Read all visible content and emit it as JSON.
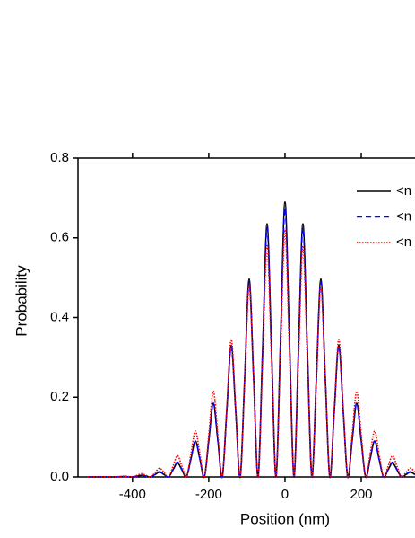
{
  "chart_data": {
    "type": "line",
    "x_label": "Position (nm)",
    "y_label": "Probability",
    "x": [
      -517,
      -505.25,
      -493.5,
      -481.75,
      -470,
      -458.25,
      -446.5,
      -434.75,
      -423,
      -411.25,
      -399.5,
      -387.75,
      -376,
      -364.25,
      -352.5,
      -340.75,
      -329,
      -317.25,
      -305.5,
      -293.75,
      -282,
      -270.25,
      -258.5,
      -246.75,
      -235,
      -223.25,
      -211.5,
      -199.75,
      -188,
      -176.25,
      -164.5,
      -152.75,
      -141,
      -129.25,
      -117.5,
      -105.75,
      -94,
      -82.25,
      -70.5,
      -58.75,
      -47,
      -35.25,
      -23.5,
      -11.75,
      0,
      11.75,
      23.5,
      35.25,
      47,
      58.75,
      70.5,
      82.25,
      94,
      105.75,
      117.5,
      129.25,
      141,
      152.75,
      164.5,
      176.25,
      188,
      199.75,
      211.5,
      223.25,
      235,
      246.75,
      258.5,
      270.25,
      282,
      293.75,
      305.5,
      317.25,
      329,
      340.75
    ],
    "series": [
      {
        "name": "<n",
        "color": "#000000",
        "dash": "solid",
        "values": [
          0,
          0,
          0,
          0,
          0,
          0,
          0,
          0.0005,
          0.001,
          0.0005,
          0,
          0.002,
          0.004,
          0.002,
          0,
          0.006,
          0.012,
          0.006,
          0,
          0.0175,
          0.035,
          0.0175,
          0,
          0.045,
          0.09,
          0.045,
          0,
          0.0925,
          0.185,
          0.0925,
          0,
          0.165,
          0.33,
          0.165,
          0,
          0.2485,
          0.497,
          0.2485,
          0,
          0.3175,
          0.635,
          0.3175,
          0,
          0.345,
          0.69,
          0.345,
          0,
          0.3175,
          0.635,
          0.3175,
          0,
          0.2485,
          0.497,
          0.2485,
          0,
          0.165,
          0.33,
          0.165,
          0,
          0.0925,
          0.185,
          0.0925,
          0,
          0.045,
          0.09,
          0.045,
          0,
          0.0175,
          0.035,
          0.0175,
          0,
          0.006,
          0.012,
          0.006
        ]
      },
      {
        "name": "<n",
        "color": "#0000ff",
        "dash": "dashed",
        "values": [
          0,
          0,
          0,
          0,
          0,
          0,
          0,
          0.0005,
          0.001,
          0.0005,
          0,
          0.002,
          0.004,
          0.002,
          0,
          0.0065,
          0.013,
          0.0065,
          0,
          0.0185,
          0.037,
          0.0185,
          0,
          0.045,
          0.09,
          0.045,
          0,
          0.0925,
          0.185,
          0.0925,
          0,
          0.164,
          0.328,
          0.164,
          0,
          0.245,
          0.49,
          0.245,
          0,
          0.3125,
          0.625,
          0.3125,
          0,
          0.3375,
          0.675,
          0.3375,
          0,
          0.3125,
          0.625,
          0.3125,
          0,
          0.245,
          0.49,
          0.245,
          0,
          0.164,
          0.328,
          0.164,
          0,
          0.0925,
          0.185,
          0.0925,
          0,
          0.045,
          0.09,
          0.045,
          0,
          0.0185,
          0.037,
          0.0185,
          0,
          0.0065,
          0.013,
          0.0065
        ]
      },
      {
        "name": "<n",
        "color": "#ff0000",
        "dash": "dotted",
        "values": [
          0,
          0,
          0,
          0.00025,
          0.0005,
          0.00025,
          0,
          0.001,
          0.002,
          0.001,
          0,
          0.004,
          0.008,
          0.004,
          0,
          0.011,
          0.022,
          0.011,
          0,
          0.0265,
          0.053,
          0.0265,
          0,
          0.0575,
          0.115,
          0.0575,
          0,
          0.1075,
          0.215,
          0.1075,
          0,
          0.1725,
          0.345,
          0.1725,
          0,
          0.24,
          0.48,
          0.24,
          0,
          0.29,
          0.58,
          0.29,
          0,
          0.31,
          0.62,
          0.31,
          0,
          0.29,
          0.58,
          0.29,
          0,
          0.24,
          0.48,
          0.24,
          0,
          0.1725,
          0.345,
          0.1725,
          0,
          0.1075,
          0.215,
          0.1075,
          0,
          0.0575,
          0.115,
          0.0575,
          0,
          0.0265,
          0.053,
          0.0265,
          0,
          0.011,
          0.022,
          0.011
        ]
      }
    ],
    "xlim": [
      -543,
      341
    ],
    "ylim": [
      0,
      0.8
    ],
    "xticks": [
      -400,
      -200,
      0,
      200
    ],
    "yticks": [
      {
        "value": 0,
        "label": "0.0"
      },
      0.2,
      0.4,
      0.6,
      0.8
    ],
    "legend": "upper right"
  }
}
